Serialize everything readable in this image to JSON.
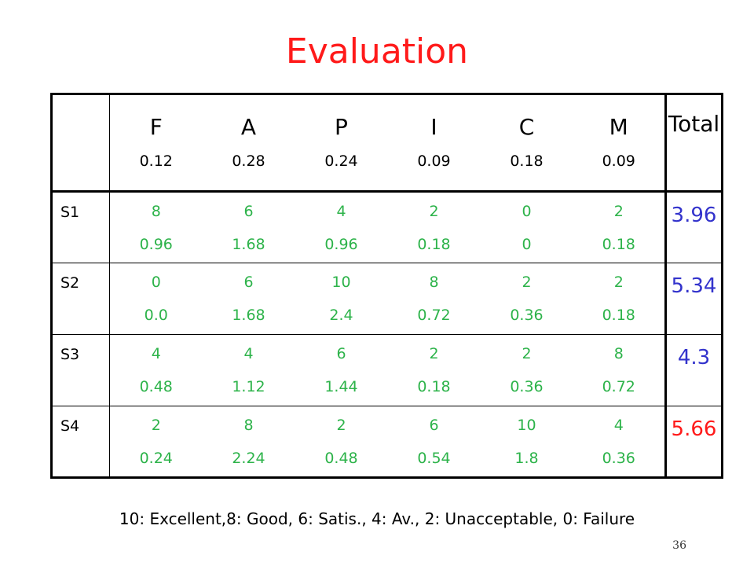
{
  "title": "Evaluation",
  "table": {
    "criteria": [
      {
        "letter": "F",
        "weight": "0.12"
      },
      {
        "letter": "A",
        "weight": "0.28"
      },
      {
        "letter": "P",
        "weight": "0.24"
      },
      {
        "letter": "I",
        "weight": "0.09"
      },
      {
        "letter": "C",
        "weight": "0.18"
      },
      {
        "letter": "M",
        "weight": "0.09"
      }
    ],
    "total_header": "Total",
    "rows": [
      {
        "label": "S1",
        "cells": [
          {
            "score": "8",
            "weighted": "0.96"
          },
          {
            "score": "6",
            "weighted": "1.68"
          },
          {
            "score": "4",
            "weighted": "0.96"
          },
          {
            "score": "2",
            "weighted": "0.18"
          },
          {
            "score": "0",
            "weighted": "0"
          },
          {
            "score": "2",
            "weighted": "0.18"
          }
        ],
        "total": "3.96",
        "total_color": "#3333cc"
      },
      {
        "label": "S2",
        "cells": [
          {
            "score": "0",
            "weighted": "0.0"
          },
          {
            "score": "6",
            "weighted": "1.68"
          },
          {
            "score": "10",
            "weighted": "2.4"
          },
          {
            "score": "8",
            "weighted": "0.72"
          },
          {
            "score": "2",
            "weighted": "0.36"
          },
          {
            "score": "2",
            "weighted": "0.18"
          }
        ],
        "total": "5.34",
        "total_color": "#3333cc"
      },
      {
        "label": "S3",
        "cells": [
          {
            "score": "4",
            "weighted": "0.48"
          },
          {
            "score": "4",
            "weighted": "1.12"
          },
          {
            "score": "6",
            "weighted": "1.44"
          },
          {
            "score": "2",
            "weighted": "0.18"
          },
          {
            "score": "2",
            "weighted": "0.36"
          },
          {
            "score": "8",
            "weighted": "0.72"
          }
        ],
        "total": "4.3",
        "total_color": "#3333cc"
      },
      {
        "label": "S4",
        "cells": [
          {
            "score": "2",
            "weighted": "0.24"
          },
          {
            "score": "8",
            "weighted": "2.24"
          },
          {
            "score": "2",
            "weighted": "0.48"
          },
          {
            "score": "6",
            "weighted": "0.54"
          },
          {
            "score": "10",
            "weighted": "1.8"
          },
          {
            "score": "4",
            "weighted": "0.36"
          }
        ],
        "total": "5.66",
        "total_color": "#ff1a1a"
      }
    ]
  },
  "legend": "10: Excellent,8: Good, 6: Satis., 4: Av., 2: Unacceptable, 0: Failure",
  "slide_number": "36",
  "colors": {
    "title": "#ff1a1a",
    "score_text": "#2db34a",
    "total_default": "#3333cc",
    "total_best": "#ff1a1a"
  }
}
